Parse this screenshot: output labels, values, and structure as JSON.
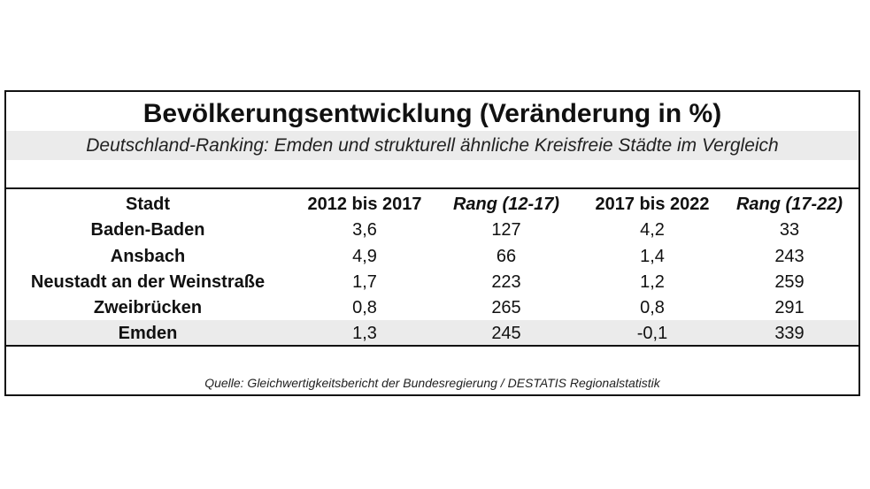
{
  "title": "Bevölkerungsentwicklung (Veränderung in %)",
  "subtitle": "Deutschland-Ranking: Emden und strukturell ähnliche Kreisfreie Städte im Vergleich",
  "table": {
    "headers": [
      "Stadt",
      "2012 bis 2017",
      "Rang (12-17)",
      "2017 bis 2022",
      "Rang (17-22)"
    ],
    "rows": [
      [
        "Baden-Baden",
        "3,6",
        "127",
        "4,2",
        "33"
      ],
      [
        "Ansbach",
        "4,9",
        "66",
        "1,4",
        "243"
      ],
      [
        "Neustadt an der Weinstraße",
        "1,7",
        "223",
        "1,2",
        "259"
      ],
      [
        "Zweibrücken",
        "0,8",
        "265",
        "0,8",
        "291"
      ],
      [
        "Emden",
        "1,3",
        "245",
        "-0,1",
        "339"
      ]
    ]
  },
  "source": "Quelle: Gleichwertigkeitsbericht der Bundesregierung / DESTATIS Regionalstatistik",
  "colors": {
    "border": "#111111",
    "highlight_row": "#ebebeb",
    "subtitle_band": "#ebebeb"
  }
}
